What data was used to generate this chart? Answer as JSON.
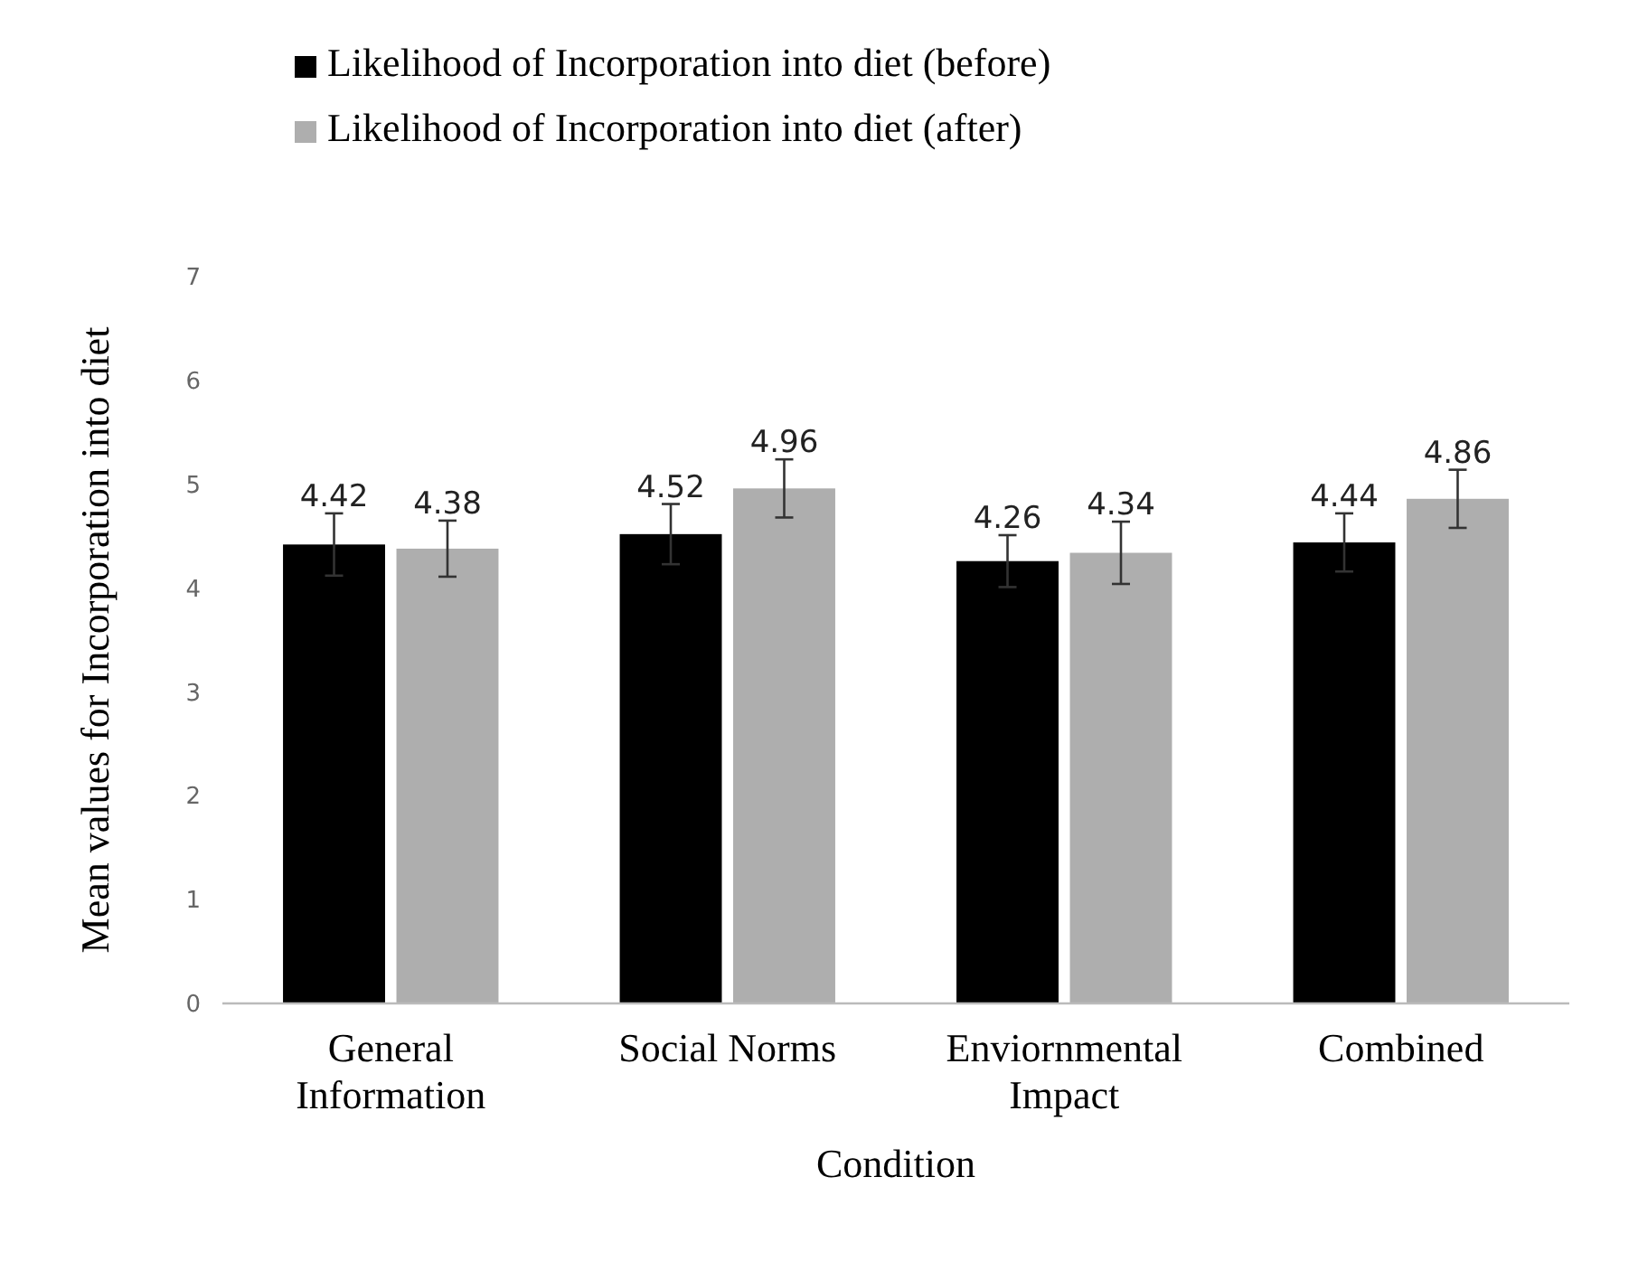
{
  "chart_data": {
    "type": "bar",
    "xlabel": "Condition",
    "ylabel": "Mean values for Incorporation into diet",
    "categories": [
      "General Information",
      "Social Norms",
      "Enviornmental Impact",
      "Combined"
    ],
    "series": [
      {
        "name": "Likelihood of Incorporation into diet (before)",
        "color": "#000000",
        "values": [
          4.42,
          4.52,
          4.26,
          4.44
        ],
        "errors": [
          0.3,
          0.29,
          0.25,
          0.28
        ]
      },
      {
        "name": "Likelihood of Incorporation into diet (after)",
        "color": "#aeaeae",
        "values": [
          4.38,
          4.96,
          4.34,
          4.86
        ],
        "errors": [
          0.27,
          0.28,
          0.3,
          0.28
        ]
      }
    ],
    "ylim": [
      0,
      7
    ],
    "yticks": [
      0,
      1,
      2,
      3,
      4,
      5,
      6,
      7
    ],
    "data_labels": true,
    "legend": "top",
    "grid": false
  }
}
